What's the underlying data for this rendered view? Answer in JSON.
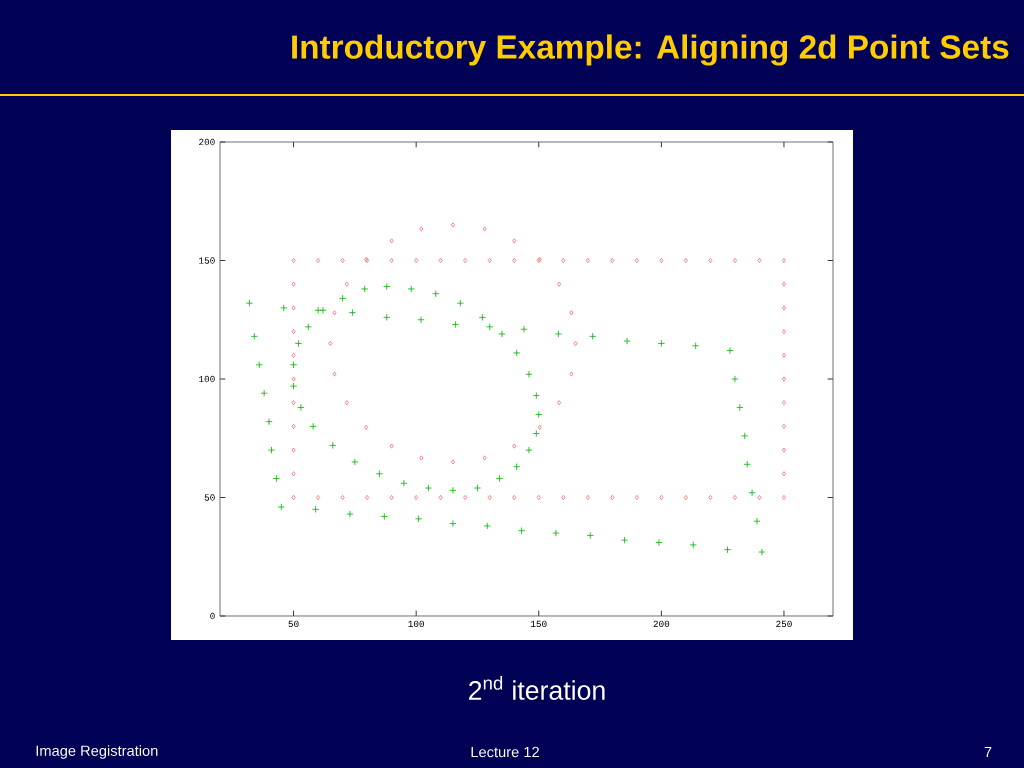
{
  "chart_data": {
    "type": "scatter",
    "title": "Introductory Example:  Aligning 2d Point Sets",
    "annotations": [
      "2$^{nd}$ iteration",
      "Image Registration",
      "Lecture 12",
      "7"
    ],
    "xlim": [
      20,
      270
    ],
    "ylim": [
      0,
      200
    ],
    "xticks": [
      50,
      100,
      150,
      200,
      250
    ],
    "yticks": [
      0,
      50,
      100,
      150,
      200
    ],
    "grid": false,
    "series": [
      {
        "color": "#ff6666",
        "marker": "diamond",
        "x": [
          50,
          60,
          70,
          80,
          90,
          100,
          110,
          120,
          130,
          140,
          150,
          160,
          170,
          180,
          190,
          200,
          210,
          220,
          230,
          240,
          250,
          250,
          250,
          250,
          250,
          250,
          250,
          250,
          250,
          250,
          250,
          240,
          230,
          220,
          210,
          200,
          190,
          180,
          170,
          160,
          150,
          140,
          130,
          120,
          110,
          100,
          90,
          80,
          70,
          60,
          50,
          50,
          50,
          50,
          50,
          50,
          50,
          50,
          50,
          50
        ],
        "values": [
          50,
          50,
          50,
          50,
          50,
          50,
          50,
          50,
          50,
          50,
          50,
          50,
          50,
          50,
          50,
          50,
          50,
          50,
          50,
          50,
          50,
          60,
          70,
          80,
          90,
          100,
          110,
          120,
          130,
          140,
          150,
          150,
          150,
          150,
          150,
          150,
          150,
          150,
          150,
          150,
          150,
          150,
          150,
          150,
          150,
          150,
          150,
          150,
          150,
          150,
          150,
          140,
          130,
          120,
          110,
          100,
          90,
          80,
          70,
          60
        ]
      },
      {
        "color": "#ff6666",
        "marker": "diamond",
        "x": [
          165,
          163.3,
          158.3,
          150.4,
          140,
          127.9,
          115,
          102.1,
          90,
          79.6,
          71.7,
          66.7,
          65,
          66.7,
          71.7,
          79.6,
          90,
          102.1,
          115,
          127.9,
          140,
          150.4,
          158.3,
          163.3
        ],
        "values": [
          115,
          127.9,
          140,
          150.4,
          158.3,
          163.3,
          165,
          163.3,
          158.3,
          150.4,
          140,
          127.9,
          115,
          102.1,
          90,
          79.6,
          71.7,
          66.7,
          65,
          66.7,
          71.7,
          79.6,
          90,
          102.1
        ]
      },
      {
        "color": "#00b000",
        "marker": "cross",
        "x": [
          32,
          46,
          60,
          74,
          88,
          102,
          116,
          130,
          144,
          158,
          172,
          186,
          200,
          214,
          228,
          230,
          232,
          234,
          235,
          237,
          239,
          241,
          227,
          213,
          199,
          185,
          171,
          157,
          143,
          129,
          115,
          101,
          87,
          73,
          59,
          45,
          43,
          41,
          40,
          38,
          36,
          34
        ],
        "values": [
          132,
          130,
          129,
          128,
          126,
          125,
          123,
          122,
          121,
          119,
          118,
          116,
          115,
          114,
          112,
          100,
          88,
          76,
          64,
          52,
          40,
          27,
          28,
          30,
          31,
          32,
          34,
          35,
          36,
          38,
          39,
          41,
          42,
          43,
          45,
          46,
          58,
          70,
          82,
          94,
          106,
          118
        ]
      },
      {
        "color": "#00b000",
        "marker": "cross",
        "x": [
          88,
          98,
          108,
          118,
          127,
          135,
          141,
          146,
          149,
          150,
          149,
          146,
          141,
          134,
          125,
          115,
          105,
          95,
          85,
          75,
          66,
          58,
          53,
          50,
          50,
          52,
          56,
          62,
          70,
          79
        ],
        "values": [
          139,
          138,
          136,
          132,
          126,
          119,
          111,
          102,
          93,
          85,
          77,
          70,
          63,
          58,
          54,
          53,
          54,
          56,
          60,
          65,
          72,
          80,
          88,
          97,
          106,
          115,
          122,
          129,
          134,
          138
        ]
      }
    ]
  }
}
